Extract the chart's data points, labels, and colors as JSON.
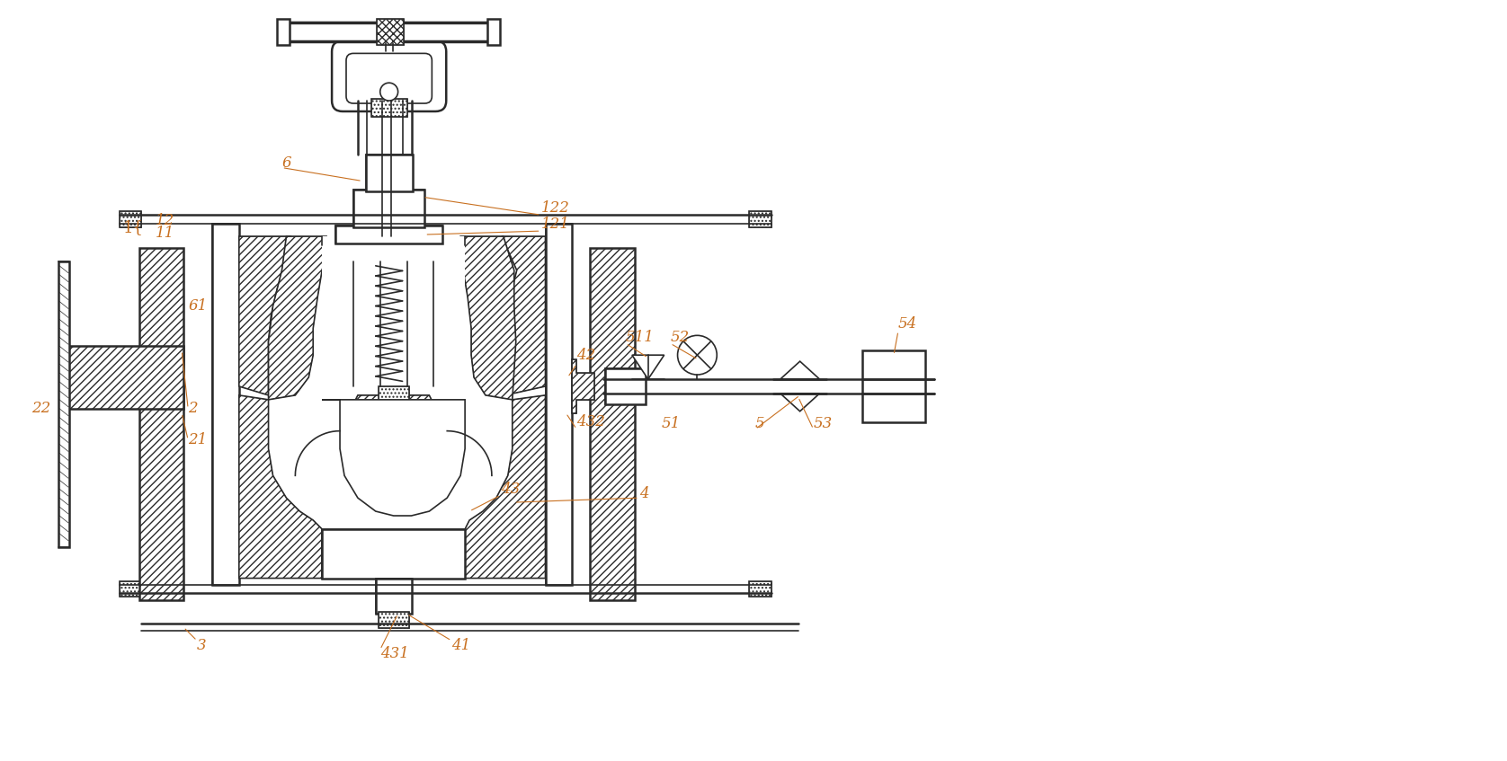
{
  "bg_color": "#ffffff",
  "lc": "#2a2a2a",
  "lbl": "#7a6030",
  "fig_w": 16.76,
  "fig_h": 8.47,
  "dpi": 100
}
